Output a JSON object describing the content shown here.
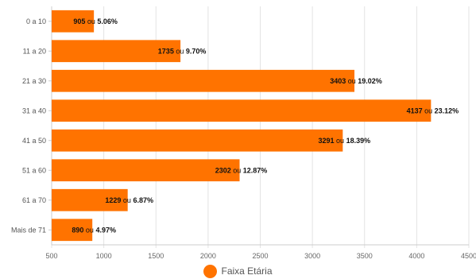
{
  "chart_data": {
    "type": "bar",
    "orientation": "horizontal",
    "categories": [
      "0 a 10",
      "11 a 20",
      "21 a 30",
      "31 a 40",
      "41 a 50",
      "51 a 60",
      "61 a 70",
      "Mais de 71"
    ],
    "series": [
      {
        "name": "Faixa Etária",
        "values": [
          905,
          1735,
          3403,
          4137,
          3291,
          2302,
          1229,
          890
        ],
        "percent_labels": [
          "5.06%",
          "9.70%",
          "19.02%",
          "23.12%",
          "18.39%",
          "12.87%",
          "6.87%",
          "4.97%"
        ],
        "color": "#FF7300"
      }
    ],
    "label_joiner": "ou",
    "xlim": [
      500,
      4500
    ],
    "x_ticks": [
      "500",
      "1000",
      "1500",
      "2000",
      "2500",
      "3000",
      "3500",
      "4000",
      "4500"
    ],
    "grid": "vertical",
    "legend_position": "bottom"
  },
  "legend": {
    "label": "Faixa Etária",
    "color": "#FF7300"
  }
}
